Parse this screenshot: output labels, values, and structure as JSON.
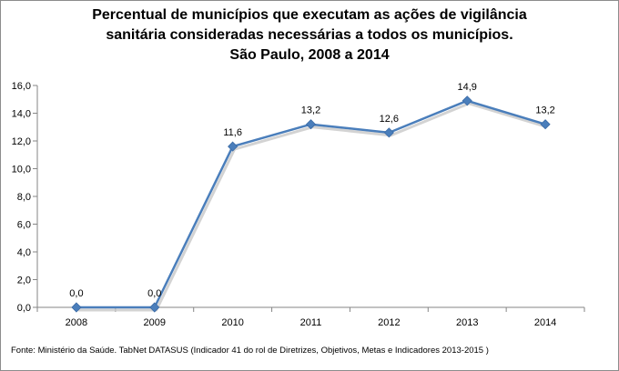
{
  "chart_data": {
    "type": "line",
    "title_lines": [
      "Percentual de municípios que executam as ações de vigilância",
      "sanitária consideradas necessárias a todos os municípios.",
      "São Paulo, 2008 a 2014"
    ],
    "categories": [
      "2008",
      "2009",
      "2010",
      "2011",
      "2012",
      "2013",
      "2014"
    ],
    "values": [
      0.0,
      0.0,
      11.6,
      13.2,
      12.6,
      14.9,
      13.2
    ],
    "data_labels": [
      "0,0",
      "0,0",
      "11,6",
      "13,2",
      "12,6",
      "14,9",
      "13,2"
    ],
    "y_ticks": [
      "0,0",
      "2,0",
      "4,0",
      "6,0",
      "8,0",
      "10,0",
      "12,0",
      "14,0",
      "16,0"
    ],
    "ylim": [
      0,
      16
    ],
    "xlabel": "",
    "ylabel": "",
    "legend": "none",
    "grid": false,
    "line_color": "#4a7ebb"
  },
  "source": "Fonte: Ministério da Saúde. TabNet DATASUS (Indicador 41 do rol de Diretrizes, Objetivos, Metas e Indicadores 2013-2015 )"
}
